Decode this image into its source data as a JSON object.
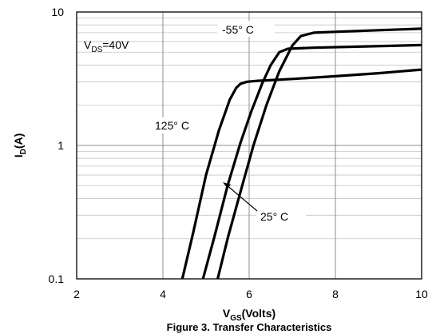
{
  "chart_data": {
    "type": "line",
    "caption": "Figure 3. Transfer Characteristics",
    "xlabel_main": "V",
    "xlabel_sub": "GS",
    "xlabel_rest": "(Volts)",
    "ylabel_main": "I",
    "ylabel_sub": "D",
    "ylabel_rest": "(A)",
    "x_ticks": [
      "2",
      "4",
      "6",
      "8",
      "10"
    ],
    "y_ticks": [
      "0.1",
      "1",
      "10"
    ],
    "xlim": [
      2,
      10
    ],
    "ylim": [
      0.1,
      10
    ],
    "y_scale": "log",
    "grid": true,
    "annotations": {
      "vds_main": "V",
      "vds_sub": "DS",
      "vds_rest": "=40V",
      "t_minus55": "-55° C",
      "t_125": "125° C",
      "t_25": "25° C"
    },
    "series": [
      {
        "name": "125° C",
        "x": [
          4.45,
          4.7,
          5.0,
          5.3,
          5.55,
          5.7,
          5.8,
          5.95,
          6.2,
          7.0,
          8.0,
          9.0,
          10.0
        ],
        "y": [
          0.1,
          0.22,
          0.6,
          1.3,
          2.2,
          2.7,
          2.9,
          3.0,
          3.05,
          3.15,
          3.3,
          3.48,
          3.7
        ]
      },
      {
        "name": "25° C",
        "x": [
          4.93,
          5.2,
          5.5,
          5.8,
          6.05,
          6.3,
          6.5,
          6.7,
          6.9,
          7.5,
          8.5,
          10.0
        ],
        "y": [
          0.1,
          0.21,
          0.5,
          1.05,
          1.8,
          2.9,
          4.0,
          5.0,
          5.3,
          5.4,
          5.5,
          5.65
        ]
      },
      {
        "name": "-55° C",
        "x": [
          5.27,
          5.5,
          5.8,
          6.1,
          6.4,
          6.7,
          7.0,
          7.2,
          7.5,
          8.0,
          9.0,
          10.0
        ],
        "y": [
          0.1,
          0.2,
          0.45,
          1.0,
          2.0,
          3.6,
          5.6,
          6.6,
          7.0,
          7.1,
          7.3,
          7.5
        ]
      }
    ]
  }
}
